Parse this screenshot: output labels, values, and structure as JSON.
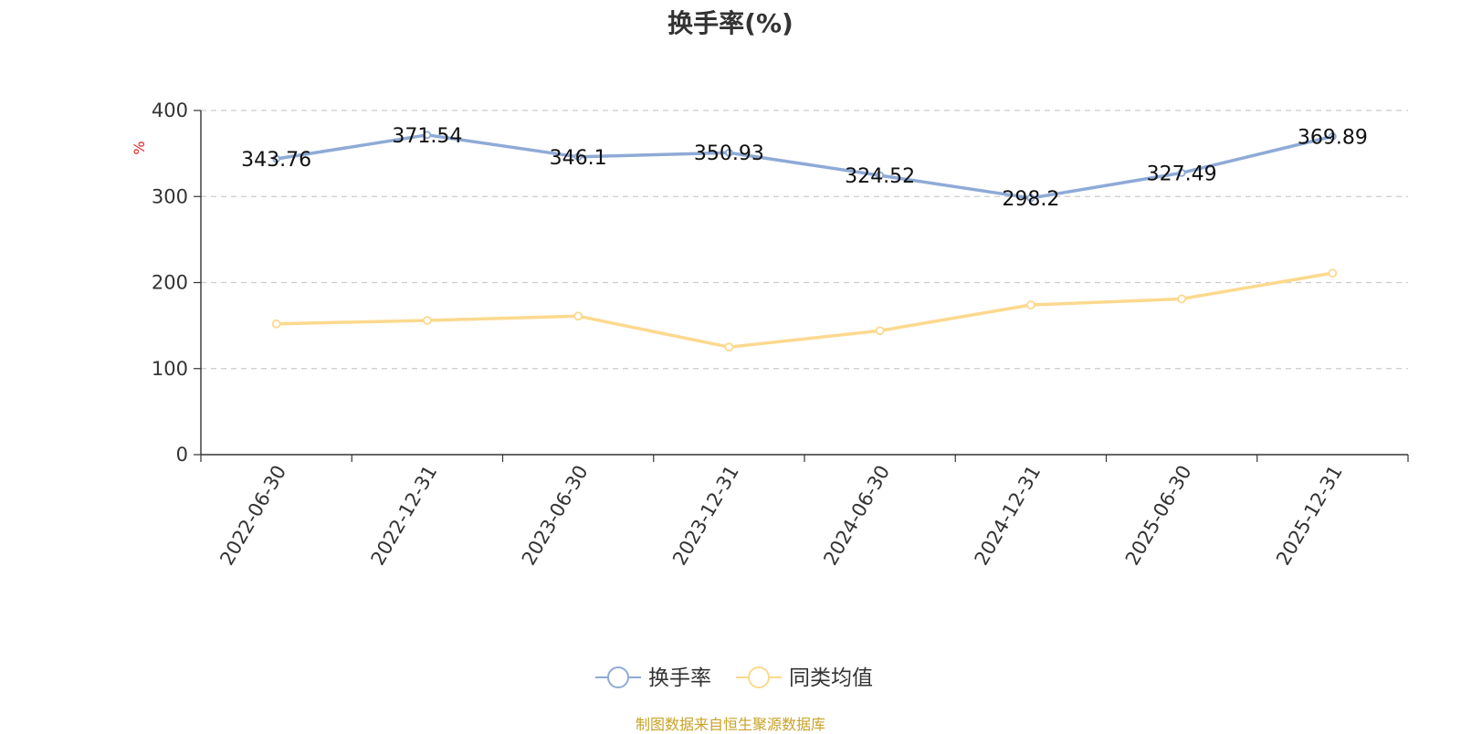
{
  "chart_data": {
    "type": "line",
    "title": "换手率(%)",
    "ylabel": "%",
    "ylim": [
      0,
      400
    ],
    "yticks": [
      0,
      100,
      200,
      300,
      400
    ],
    "categories": [
      "2022-06-30",
      "2022-12-31",
      "2023-06-30",
      "2023-12-31",
      "2024-06-30",
      "2024-12-31",
      "2025-06-30",
      "2025-12-31"
    ],
    "series": [
      {
        "name": "换手率",
        "color": "#8eaad6",
        "values": [
          343.76,
          371.54,
          346.1,
          350.93,
          324.52,
          298.2,
          327.49,
          369.89
        ],
        "labels": [
          "343.76",
          "371.54",
          "346.1",
          "350.93",
          "324.52",
          "298.2",
          "327.49",
          "369.89"
        ]
      },
      {
        "name": "同类均值",
        "color": "#fcd98e",
        "values": [
          152,
          156,
          161,
          125,
          144,
          174,
          181,
          211
        ]
      }
    ],
    "grid": true,
    "legend": "bottom-center"
  },
  "source": "制图数据来自恒生聚源数据库"
}
